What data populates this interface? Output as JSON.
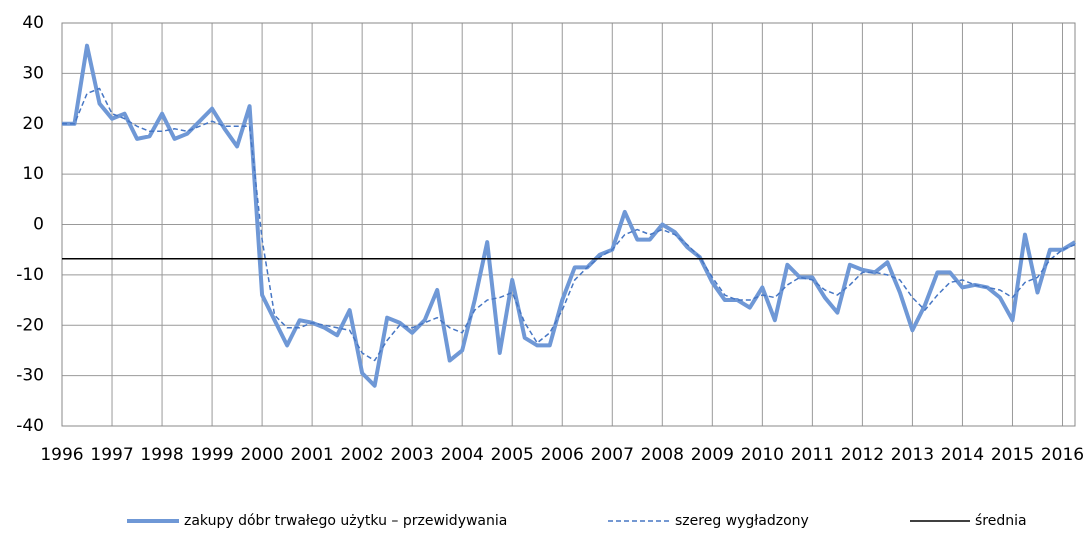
{
  "chart_data": {
    "type": "line",
    "x": [
      1996,
      1996.25,
      1996.5,
      1996.75,
      1997,
      1997.25,
      1997.5,
      1997.75,
      1998,
      1998.25,
      1998.5,
      1998.75,
      1999,
      1999.25,
      1999.5,
      1999.75,
      2000,
      2000.25,
      2000.5,
      2000.75,
      2001,
      2001.25,
      2001.5,
      2001.75,
      2002,
      2002.25,
      2002.5,
      2002.75,
      2003,
      2003.25,
      2003.5,
      2003.75,
      2004,
      2004.25,
      2004.5,
      2004.75,
      2005,
      2005.25,
      2005.5,
      2005.75,
      2006,
      2006.25,
      2006.5,
      2006.75,
      2007,
      2007.25,
      2007.5,
      2007.75,
      2008,
      2008.25,
      2008.5,
      2008.75,
      2009,
      2009.25,
      2009.5,
      2009.75,
      2010,
      2010.25,
      2010.5,
      2010.75,
      2011,
      2011.25,
      2011.5,
      2011.75,
      2012,
      2012.25,
      2012.5,
      2012.75,
      2013,
      2013.25,
      2013.5,
      2013.75,
      2014,
      2014.25,
      2014.5,
      2014.75,
      2015,
      2015.25,
      2015.5,
      2015.75,
      2016,
      2016.25
    ],
    "series": [
      {
        "name": "zakupy dóbr trwałego użytku – przewidywania",
        "color": "#6f98d6",
        "values": [
          20,
          20,
          35.5,
          24,
          21,
          22,
          17,
          17.5,
          22,
          17,
          18,
          20.5,
          23,
          19,
          15.5,
          23.5,
          -14,
          -19,
          -24,
          -19,
          -19.5,
          -20.5,
          -22,
          -17,
          -29.5,
          -32,
          -18.5,
          -19.5,
          -21.5,
          -19,
          -13,
          -27,
          -25,
          -15,
          -3.5,
          -25.5,
          -11,
          -22.5,
          -24,
          -24,
          -15,
          -8.5,
          -8.5,
          -6,
          -5,
          2.5,
          -3,
          -3,
          0,
          -1.5,
          -4.5,
          -6.5,
          -11.5,
          -15,
          -15,
          -16.5,
          -12.5,
          -19,
          -8,
          -10.5,
          -10.5,
          -14.5,
          -17.5,
          -8,
          -9,
          -9.5,
          -7.5,
          -13.5,
          -21,
          -16,
          -9.5,
          -9.5,
          -12.5,
          -12,
          -12.5,
          -14.5,
          -19,
          -2,
          -13.5,
          -5,
          -5,
          -3.5
        ]
      },
      {
        "name": "szereg wygładzony",
        "color": "#4676c4",
        "values": [
          20,
          20,
          26,
          27,
          22,
          21,
          19.5,
          18.5,
          18.5,
          19,
          18.5,
          19.5,
          20.5,
          19.5,
          19.5,
          19.5,
          -3,
          -18,
          -20.5,
          -20.5,
          -19.5,
          -20,
          -20.5,
          -21,
          -25.5,
          -27,
          -23,
          -20,
          -20.5,
          -19.5,
          -18.5,
          -20.5,
          -21.5,
          -17,
          -15,
          -14.5,
          -13.5,
          -19.5,
          -23.5,
          -21.5,
          -17,
          -11,
          -8.5,
          -6.5,
          -5,
          -2,
          -1,
          -2,
          -1,
          -2,
          -4,
          -6.5,
          -10.5,
          -14,
          -15,
          -15,
          -14,
          -14.5,
          -12,
          -10.5,
          -11,
          -13,
          -14,
          -12,
          -9.5,
          -9.5,
          -10,
          -11,
          -14.5,
          -17,
          -14,
          -11.5,
          -11,
          -12,
          -12.5,
          -13,
          -14.5,
          -11.5,
          -10.5,
          -7,
          -5,
          -4
        ]
      },
      {
        "name": "średnia",
        "color": "#000000",
        "value": -6.8
      }
    ],
    "xlim": [
      1996,
      2016.25
    ],
    "xticks": [
      1996,
      1997,
      1998,
      1999,
      2000,
      2001,
      2002,
      2003,
      2004,
      2005,
      2006,
      2007,
      2008,
      2009,
      2010,
      2011,
      2012,
      2013,
      2014,
      2015,
      2016
    ],
    "ylim": [
      -40,
      40
    ],
    "yticks": [
      -40,
      -30,
      -20,
      -10,
      0,
      10,
      20,
      30,
      40
    ],
    "grid": true
  }
}
